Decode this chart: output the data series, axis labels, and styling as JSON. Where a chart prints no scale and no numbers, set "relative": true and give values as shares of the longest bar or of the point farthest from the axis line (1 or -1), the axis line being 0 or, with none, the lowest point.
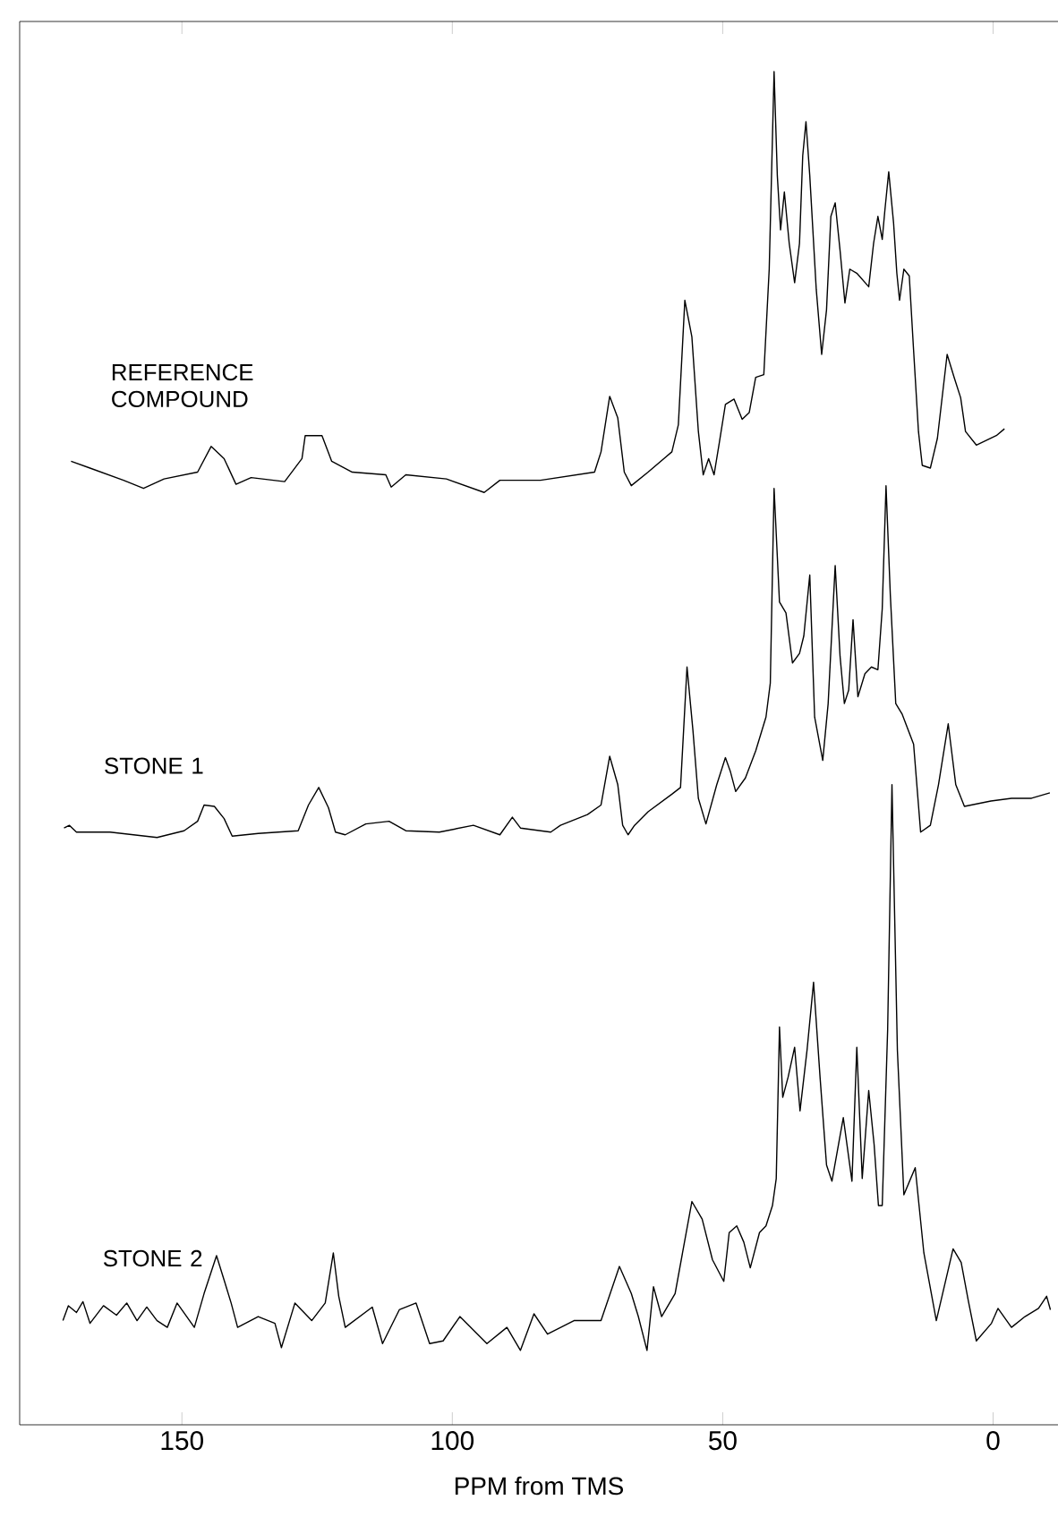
{
  "chart_data": {
    "type": "line",
    "xlabel": "PPM from TMS",
    "xlim": [
      180,
      -12
    ],
    "xticks": [
      150,
      100,
      50,
      0
    ],
    "relative": true,
    "series": [
      {
        "name": "REFERENCE COMPOUND",
        "color": "#000000",
        "x": [
          170.5,
          167.0,
          160.8,
          157.1,
          153.3,
          147.1,
          144.6,
          142.2,
          140.0,
          137.2,
          131.0,
          127.8,
          127.2,
          124.1,
          122.3,
          118.5,
          112.3,
          111.3,
          108.6,
          101.1,
          94.1,
          91.2,
          83.7,
          73.7,
          72.5,
          70.9,
          69.4,
          68.2,
          66.9,
          63.8,
          59.4,
          58.2,
          57.0,
          55.7,
          54.5,
          53.6,
          52.6,
          51.6,
          50.7,
          49.5,
          47.9,
          46.4,
          45.1,
          43.9,
          42.4,
          41.4,
          40.5,
          39.9,
          39.3,
          38.6,
          37.7,
          36.7,
          35.8,
          35.2,
          34.6,
          33.9,
          32.7,
          31.7,
          30.8,
          30.0,
          29.2,
          28.3,
          27.4,
          26.5,
          25.2,
          23.0,
          22.1,
          21.3,
          20.5,
          20.0,
          19.3,
          18.4,
          17.8,
          17.3,
          16.5,
          15.5,
          14.7,
          13.8,
          13.1,
          11.6,
          10.3,
          8.5,
          7.2,
          6.0,
          5.1,
          3.1,
          -0.6,
          -2.1
        ],
        "values": [
          0.712,
          0.707,
          0.698,
          0.692,
          0.699,
          0.704,
          0.723,
          0.714,
          0.695,
          0.7,
          0.697,
          0.714,
          0.731,
          0.731,
          0.712,
          0.704,
          0.702,
          0.693,
          0.702,
          0.699,
          0.689,
          0.698,
          0.698,
          0.704,
          0.719,
          0.76,
          0.744,
          0.704,
          0.694,
          0.704,
          0.719,
          0.739,
          0.831,
          0.804,
          0.734,
          0.702,
          0.714,
          0.702,
          0.724,
          0.754,
          0.758,
          0.743,
          0.748,
          0.774,
          0.776,
          0.854,
          1.0,
          0.923,
          0.883,
          0.911,
          0.873,
          0.844,
          0.873,
          0.938,
          0.963,
          0.923,
          0.839,
          0.791,
          0.824,
          0.893,
          0.903,
          0.868,
          0.829,
          0.854,
          0.851,
          0.841,
          0.873,
          0.893,
          0.876,
          0.898,
          0.926,
          0.888,
          0.851,
          0.831,
          0.854,
          0.849,
          0.794,
          0.734,
          0.709,
          0.707,
          0.729,
          0.791,
          0.774,
          0.759,
          0.734,
          0.724,
          0.731,
          0.736
        ]
      },
      {
        "name": "STONE 1",
        "color": "#000000",
        "x": [
          171.8,
          170.8,
          169.5,
          163.3,
          154.6,
          149.6,
          147.1,
          145.9,
          144.0,
          142.2,
          140.7,
          135.9,
          128.5,
          126.6,
          124.7,
          122.9,
          121.6,
          119.8,
          116.0,
          111.7,
          108.6,
          102.4,
          96.1,
          91.2,
          88.9,
          87.4,
          81.8,
          80.0,
          75.0,
          72.5,
          70.9,
          69.4,
          68.5,
          67.5,
          66.3,
          63.8,
          59.4,
          57.8,
          56.6,
          55.5,
          54.5,
          53.1,
          51.1,
          49.5,
          48.6,
          47.6,
          45.8,
          43.9,
          42.0,
          41.2,
          40.5,
          39.5,
          38.3,
          37.1,
          35.8,
          35.0,
          33.9,
          33.0,
          31.5,
          30.5,
          29.2,
          28.3,
          27.5,
          26.7,
          25.9,
          25.0,
          23.7,
          22.5,
          21.3,
          20.5,
          19.8,
          19.0,
          18.0,
          16.8,
          14.7,
          13.4,
          11.6,
          10.1,
          8.3,
          6.9,
          5.3,
          0.4,
          -3.4,
          -7.1,
          -10.5
        ],
        "values": [
          0.441,
          0.443,
          0.438,
          0.438,
          0.434,
          0.439,
          0.446,
          0.458,
          0.457,
          0.448,
          0.435,
          0.437,
          0.439,
          0.458,
          0.471,
          0.456,
          0.438,
          0.436,
          0.444,
          0.446,
          0.439,
          0.438,
          0.443,
          0.436,
          0.449,
          0.441,
          0.438,
          0.443,
          0.451,
          0.458,
          0.494,
          0.473,
          0.443,
          0.436,
          0.443,
          0.453,
          0.466,
          0.471,
          0.56,
          0.513,
          0.463,
          0.444,
          0.473,
          0.493,
          0.483,
          0.468,
          0.478,
          0.498,
          0.523,
          0.548,
          0.692,
          0.608,
          0.6,
          0.563,
          0.57,
          0.583,
          0.628,
          0.523,
          0.491,
          0.533,
          0.635,
          0.568,
          0.533,
          0.543,
          0.595,
          0.538,
          0.555,
          0.56,
          0.558,
          0.603,
          0.694,
          0.613,
          0.533,
          0.525,
          0.503,
          0.438,
          0.443,
          0.473,
          0.518,
          0.473,
          0.457,
          0.461,
          0.463,
          0.463,
          0.467
        ]
      },
      {
        "name": "STONE 2",
        "color": "#000000",
        "x": [
          172.0,
          171.0,
          169.5,
          168.3,
          167.0,
          164.5,
          162.1,
          160.2,
          158.3,
          156.5,
          154.6,
          152.7,
          150.9,
          147.7,
          145.9,
          143.6,
          142.2,
          140.9,
          139.7,
          135.9,
          132.8,
          131.6,
          129.1,
          126.0,
          123.5,
          122.0,
          121.0,
          119.8,
          114.8,
          112.9,
          109.8,
          106.7,
          104.2,
          101.7,
          98.6,
          93.6,
          89.9,
          87.4,
          84.9,
          82.4,
          77.5,
          72.5,
          69.1,
          66.9,
          65.6,
          64.0,
          62.8,
          61.3,
          58.8,
          55.7,
          53.8,
          51.9,
          49.8,
          48.8,
          47.4,
          46.1,
          44.9,
          43.2,
          42.0,
          40.8,
          40.1,
          39.5,
          38.9,
          37.9,
          36.7,
          35.7,
          34.4,
          33.2,
          32.0,
          30.8,
          29.8,
          27.7,
          26.1,
          25.2,
          24.2,
          23.0,
          22.0,
          21.2,
          20.5,
          19.5,
          18.7,
          17.7,
          16.5,
          14.4,
          12.8,
          10.5,
          7.4,
          5.9,
          4.6,
          3.1,
          0.3,
          -0.9,
          -3.4,
          -5.9,
          -8.4,
          -9.9,
          -10.6
        ],
        "values": [
          0.077,
          0.088,
          0.083,
          0.091,
          0.075,
          0.088,
          0.081,
          0.09,
          0.077,
          0.087,
          0.077,
          0.072,
          0.09,
          0.072,
          0.097,
          0.125,
          0.107,
          0.09,
          0.072,
          0.08,
          0.075,
          0.057,
          0.09,
          0.077,
          0.09,
          0.127,
          0.095,
          0.072,
          0.087,
          0.06,
          0.085,
          0.09,
          0.06,
          0.062,
          0.08,
          0.06,
          0.072,
          0.055,
          0.082,
          0.067,
          0.077,
          0.077,
          0.117,
          0.097,
          0.08,
          0.055,
          0.102,
          0.08,
          0.097,
          0.165,
          0.152,
          0.122,
          0.106,
          0.142,
          0.147,
          0.135,
          0.116,
          0.142,
          0.147,
          0.162,
          0.182,
          0.294,
          0.242,
          0.257,
          0.279,
          0.232,
          0.277,
          0.327,
          0.257,
          0.192,
          0.18,
          0.227,
          0.18,
          0.279,
          0.182,
          0.247,
          0.207,
          0.162,
          0.162,
          0.292,
          0.473,
          0.277,
          0.17,
          0.19,
          0.127,
          0.077,
          0.13,
          0.12,
          0.092,
          0.062,
          0.075,
          0.086,
          0.072,
          0.08,
          0.086,
          0.095,
          0.085
        ]
      }
    ]
  }
}
